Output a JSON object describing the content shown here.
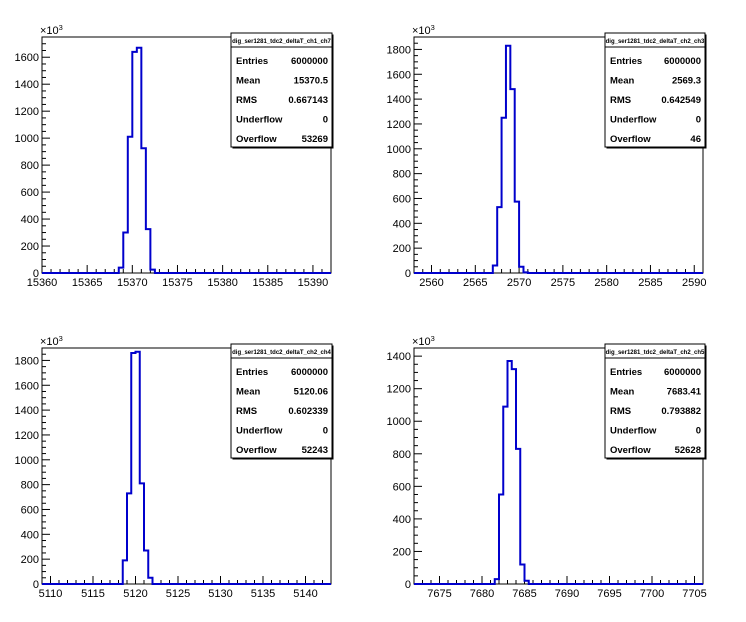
{
  "chart_data": [
    {
      "type": "histogram",
      "title": "dig_ser1281_tdc2_deltaT_ch1_ch7",
      "y_multiplier": "×10³",
      "xlim": [
        15360,
        15392
      ],
      "ylim": [
        0,
        1750
      ],
      "x_ticks": [
        15360,
        15365,
        15370,
        15375,
        15380,
        15385,
        15390
      ],
      "y_ticks": [
        0,
        200,
        400,
        600,
        800,
        1000,
        1200,
        1400,
        1600
      ],
      "bin_width": 0.5,
      "bins_x": [
        15368.5,
        15369,
        15369.5,
        15370,
        15370.5,
        15371,
        15371.5,
        15372
      ],
      "bins_y": [
        40,
        300,
        1010,
        1640,
        1670,
        925,
        325,
        25
      ],
      "stats": {
        "Entries": "6000000",
        "Mean": "15370.5",
        "RMS": "0.667143",
        "Underflow": "0",
        "Overflow": "53269"
      }
    },
    {
      "type": "histogram",
      "title": "dig_ser1281_tdc2_deltaT_ch2_ch3",
      "y_multiplier": "×10³",
      "xlim": [
        2558,
        2591
      ],
      "ylim": [
        0,
        1900
      ],
      "x_ticks": [
        2560,
        2565,
        2570,
        2575,
        2580,
        2585,
        2590
      ],
      "y_ticks": [
        0,
        200,
        400,
        600,
        800,
        1000,
        1200,
        1400,
        1600,
        1800
      ],
      "bin_width": 0.5,
      "bins_x": [
        2567,
        2567.5,
        2568,
        2568.5,
        2569,
        2569.5,
        2570,
        2570.5
      ],
      "bins_y": [
        60,
        530,
        1250,
        1830,
        1480,
        575,
        50,
        5
      ],
      "stats": {
        "Entries": "6000000",
        "Mean": "2569.3",
        "RMS": "0.642549",
        "Underflow": "0",
        "Overflow": "46"
      }
    },
    {
      "type": "histogram",
      "title": "dig_ser1281_tdc2_deltaT_ch2_ch4",
      "y_multiplier": "×10³",
      "xlim": [
        5109,
        5143
      ],
      "ylim": [
        0,
        1900
      ],
      "x_ticks": [
        5110,
        5115,
        5120,
        5125,
        5130,
        5135,
        5140
      ],
      "y_ticks": [
        0,
        200,
        400,
        600,
        800,
        1000,
        1200,
        1400,
        1600,
        1800
      ],
      "bin_width": 0.5,
      "bins_x": [
        5118.5,
        5119,
        5119.5,
        5120,
        5120.5,
        5121,
        5121.5
      ],
      "bins_y": [
        190,
        730,
        1860,
        1870,
        810,
        270,
        50
      ],
      "stats": {
        "Entries": "6000000",
        "Mean": "5120.06",
        "RMS": "0.602339",
        "Underflow": "0",
        "Overflow": "52243"
      }
    },
    {
      "type": "histogram",
      "title": "dig_ser1281_tdc2_deltaT_ch2_ch5",
      "y_multiplier": "×10³",
      "xlim": [
        7672,
        7706
      ],
      "ylim": [
        0,
        1450
      ],
      "x_ticks": [
        7675,
        7680,
        7685,
        7690,
        7695,
        7700,
        7705
      ],
      "y_ticks": [
        0,
        200,
        400,
        600,
        800,
        1000,
        1200,
        1400
      ],
      "bin_width": 0.5,
      "bins_x": [
        7681.5,
        7682,
        7682.5,
        7683,
        7683.5,
        7684,
        7684.5,
        7685
      ],
      "bins_y": [
        30,
        550,
        1090,
        1370,
        1320,
        830,
        120,
        20
      ],
      "stats": {
        "Entries": "6000000",
        "Mean": "7683.41",
        "RMS": "0.793882",
        "Underflow": "0",
        "Overflow": "52628"
      }
    }
  ],
  "colors": {
    "histogram_line": "#0000cc",
    "frame": "#000000",
    "background": "#ffffff"
  }
}
